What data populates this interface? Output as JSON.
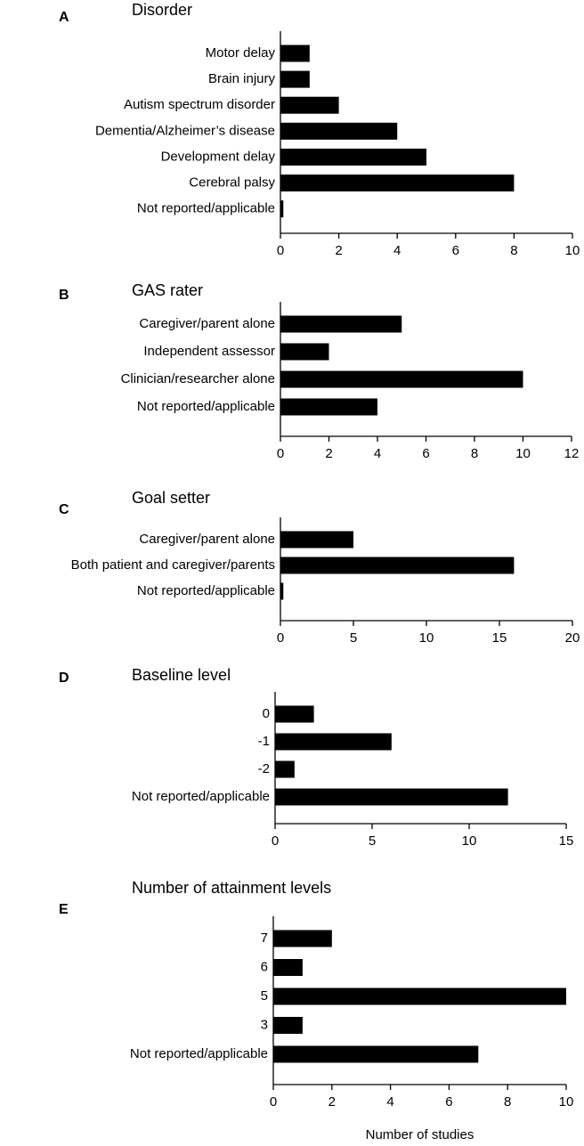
{
  "chart_data": [
    {
      "type": "bar",
      "orientation": "horizontal",
      "panel": "A",
      "title": "Disorder",
      "categories": [
        "Motor delay",
        "Brain injury",
        "Autism spectrum disorder",
        "Dementia/Alzheimer’s disease",
        "Development delay",
        "Cerebral palsy",
        "Not reported/applicable"
      ],
      "values": [
        1,
        1,
        2,
        4,
        5,
        8,
        0.1
      ],
      "color": "#000000",
      "xlim": [
        0,
        10
      ],
      "xticks": [
        0,
        2,
        4,
        6,
        8,
        10
      ]
    },
    {
      "type": "bar",
      "orientation": "horizontal",
      "panel": "B",
      "title": "GAS rater",
      "categories": [
        "Caregiver/parent alone",
        "Independent assessor",
        "Clinician/researcher alone",
        "Not reported/applicable"
      ],
      "values": [
        5,
        2,
        10,
        4
      ],
      "color": "#000000",
      "xlim": [
        0,
        12
      ],
      "xticks": [
        0,
        2,
        4,
        6,
        8,
        10,
        12
      ]
    },
    {
      "type": "bar",
      "orientation": "horizontal",
      "panel": "C",
      "title": "Goal setter",
      "categories": [
        "Caregiver/parent alone",
        "Both patient and caregiver/parents",
        "Not reported/applicable"
      ],
      "values": [
        5,
        16,
        0.2
      ],
      "color": "#000000",
      "xlim": [
        0,
        20
      ],
      "xticks": [
        0,
        5,
        10,
        15,
        20
      ]
    },
    {
      "type": "bar",
      "orientation": "horizontal",
      "panel": "D",
      "title": "Baseline level",
      "categories": [
        "0",
        "-1",
        "-2",
        "Not reported/applicable"
      ],
      "values": [
        2,
        6,
        1,
        12
      ],
      "color": "#000000",
      "xlim": [
        0,
        15
      ],
      "xticks": [
        0,
        5,
        10,
        15
      ]
    },
    {
      "type": "bar",
      "orientation": "horizontal",
      "panel": "E",
      "title": "Number of attainment levels",
      "x_label": "Number of studies",
      "categories": [
        "7",
        "6",
        "5",
        "3",
        "Not reported/applicable"
      ],
      "values": [
        2,
        1,
        10,
        1,
        7
      ],
      "color": "#000000",
      "xlim": [
        0,
        10
      ],
      "xticks": [
        0,
        2,
        4,
        6,
        8,
        10
      ]
    }
  ]
}
